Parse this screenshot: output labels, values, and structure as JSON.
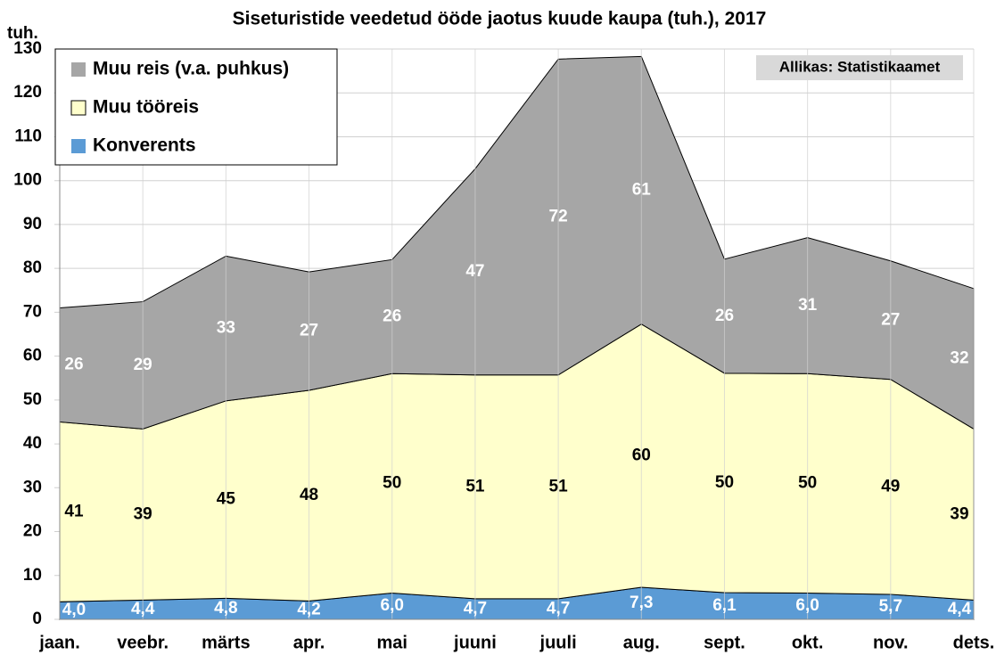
{
  "chart_data": {
    "type": "stacked_area",
    "title": "Siseturistide veedetud ööde jaotus kuude kaupa (tuh.), 2017",
    "y_label": "tuh.",
    "source": "Allikas: Statistikaamet",
    "categories": [
      "jaan.",
      "veebr.",
      "märts",
      "apr.",
      "mai",
      "juuni",
      "juuli",
      "aug.",
      "sept.",
      "okt.",
      "nov.",
      "dets."
    ],
    "series": [
      {
        "name": "Konverents",
        "color": "#5b9bd5",
        "label_color": "#ffffff",
        "values": [
          4.0,
          4.4,
          4.8,
          4.2,
          6.0,
          4.7,
          4.7,
          7.3,
          6.1,
          6.0,
          5.7,
          4.4
        ],
        "value_labels": [
          "4,0",
          "4,4",
          "4,8",
          "4,2",
          "6,0",
          "4,7",
          "4,7",
          "7,3",
          "6,1",
          "6,0",
          "5,7",
          "4,4"
        ]
      },
      {
        "name": "Muu tööreis",
        "color": "#ffffcc",
        "label_color": "#000000",
        "values": [
          41,
          39,
          45,
          48,
          50,
          51,
          51,
          60,
          50,
          50,
          49,
          39
        ]
      },
      {
        "name": "Muu reis (v.a. puhkus)",
        "color": "#a6a6a6",
        "label_color": "#ffffff",
        "values": [
          26,
          29,
          33,
          27,
          26,
          47,
          72,
          61,
          26,
          31,
          27,
          32
        ]
      }
    ],
    "ylim": [
      0,
      130
    ],
    "yticks": [
      0,
      10,
      20,
      30,
      40,
      50,
      60,
      70,
      80,
      90,
      100,
      110,
      120,
      130
    ],
    "grid": true
  }
}
